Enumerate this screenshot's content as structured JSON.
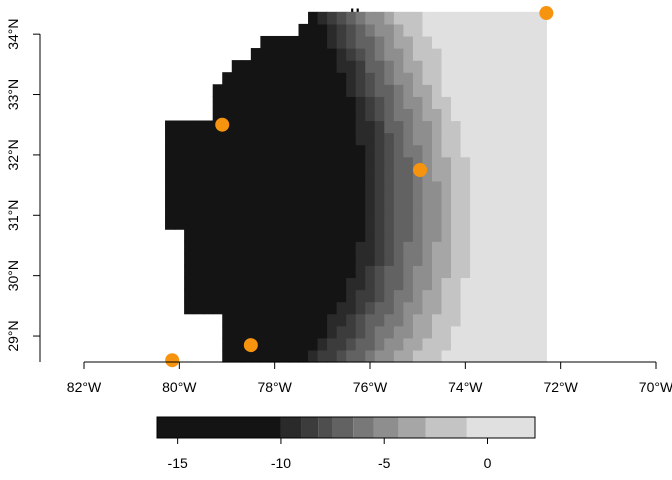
{
  "map": {
    "title": "u",
    "x_ticks": [
      {
        "value": -82,
        "label": "82°W"
      },
      {
        "value": -80,
        "label": "80°W"
      },
      {
        "value": -78,
        "label": "78°W"
      },
      {
        "value": -76,
        "label": "76°W"
      },
      {
        "value": -74,
        "label": "74°W"
      },
      {
        "value": -72,
        "label": "72°W"
      },
      {
        "value": -70,
        "label": "70°W"
      }
    ],
    "y_ticks": [
      {
        "value": 29,
        "label": "29°N"
      },
      {
        "value": 30,
        "label": "30°N"
      },
      {
        "value": 31,
        "label": "31°N"
      },
      {
        "value": 32,
        "label": "32°N"
      },
      {
        "value": 33,
        "label": "33°N"
      },
      {
        "value": 34,
        "label": "34°N"
      }
    ],
    "xlim": [
      -82,
      -70
    ],
    "ylim": [
      28.57,
      34.4
    ],
    "grid_extent": {
      "lon": [
        -80.3,
        -72.2
      ],
      "lat": [
        28.57,
        34.4
      ],
      "cell_lon": 0.2,
      "cell_lat": 0.2
    },
    "color_scale": {
      "breaks": [
        -16,
        -10,
        -9,
        -8.2,
        -7.5,
        -6.5,
        -5.5,
        -4.3,
        -3,
        -1,
        2.3
      ],
      "colors": [
        "#141414",
        "#2a2a2a",
        "#3c3c3c",
        "#4e4e4e",
        "#626262",
        "#787878",
        "#8e8e8e",
        "#a6a6a6",
        "#c4c4c4",
        "#e0e0e0"
      ]
    },
    "field_model": {
      "center": [
        -79.0,
        32.0
      ],
      "base": -16.5,
      "slope_east": 5.5,
      "curvature": 0.45,
      "lat_factor": 0.35,
      "ne_boost": 1.2
    },
    "points": [
      {
        "lon": -72.3,
        "lat": 34.35
      },
      {
        "lon": -79.1,
        "lat": 32.5
      },
      {
        "lon": -74.95,
        "lat": 31.75
      },
      {
        "lon": -78.5,
        "lat": 28.85
      },
      {
        "lon": -80.15,
        "lat": 28.6
      }
    ],
    "point_color": "#f7940f",
    "legend": {
      "ticks": [
        {
          "value": -15,
          "label": "-15"
        },
        {
          "value": -10,
          "label": "-10"
        },
        {
          "value": -5,
          "label": "-5"
        },
        {
          "value": 0,
          "label": "0"
        }
      ]
    }
  }
}
